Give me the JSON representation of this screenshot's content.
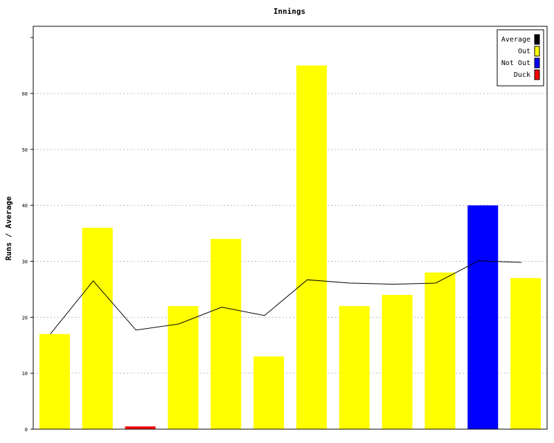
{
  "chart_data": {
    "type": "bar",
    "title": "Innings",
    "xlabel": "",
    "ylabel": "Runs / Average",
    "ylim": [
      0,
      72
    ],
    "yticks": [
      0,
      10,
      20,
      30,
      40,
      50,
      60
    ],
    "grid": true,
    "legend_position": "top-right",
    "legend": [
      {
        "name": "Average",
        "color": "#000000"
      },
      {
        "name": "Out",
        "color": "#ffff00"
      },
      {
        "name": "Not Out",
        "color": "#0000ff"
      },
      {
        "name": "Duck",
        "color": "#ff0000"
      }
    ],
    "innings": [
      {
        "runs": 17,
        "status": "Out"
      },
      {
        "runs": 36,
        "status": "Out"
      },
      {
        "runs": 0,
        "status": "Duck"
      },
      {
        "runs": 22,
        "status": "Out"
      },
      {
        "runs": 34,
        "status": "Out"
      },
      {
        "runs": 13,
        "status": "Out"
      },
      {
        "runs": 65,
        "status": "Out"
      },
      {
        "runs": 22,
        "status": "Out"
      },
      {
        "runs": 24,
        "status": "Out"
      },
      {
        "runs": 28,
        "status": "Out"
      },
      {
        "runs": 40,
        "status": "Not Out"
      },
      {
        "runs": 27,
        "status": "Out"
      }
    ],
    "average": [
      17.0,
      26.5,
      17.7,
      18.8,
      21.8,
      20.3,
      26.7,
      26.1,
      25.9,
      26.1,
      30.1,
      29.8
    ]
  }
}
